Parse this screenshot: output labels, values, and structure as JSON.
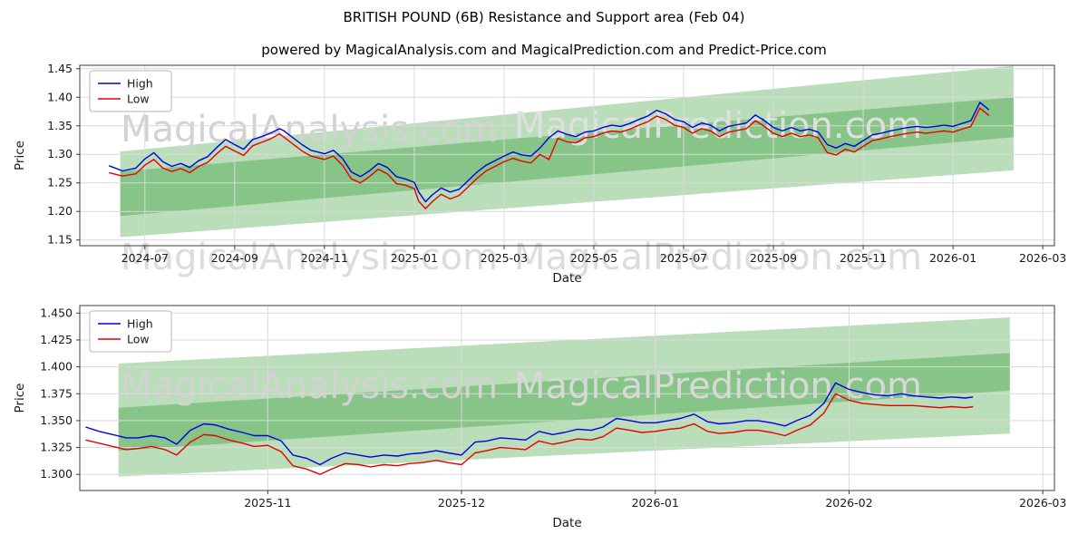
{
  "figure": {
    "title": "BRITISH POUND (6B) Resistance and Support area (Feb 04)",
    "subtitle": "powered by MagicalAnalysis.com and MagicalPrediction.com and Predict-Price.com"
  },
  "colors": {
    "high": "#0000e0",
    "low": "#e80000",
    "band": "rgba(0,128,0,0.27)",
    "grid": "#d9d9d9",
    "spine": "#3c3c3c",
    "text": "#1a1a1a",
    "watermark": "#d8d8d8",
    "legend_border": "#b5b5b5"
  },
  "chart_data": [
    {
      "type": "line",
      "title": "",
      "xlabel": "Date",
      "ylabel": "Price",
      "x_unit": "months since 2024-06-01",
      "xlim": [
        -0.45,
        21.26
      ],
      "ylim": [
        1.14,
        1.456
      ],
      "grid": true,
      "legend": {
        "position": "upper-left",
        "entries": [
          {
            "label": "High",
            "color_key": "high"
          },
          {
            "label": "Low",
            "color_key": "low"
          }
        ]
      },
      "xticks": [
        {
          "v": 1,
          "label": "2024-07"
        },
        {
          "v": 3,
          "label": "2024-09"
        },
        {
          "v": 5,
          "label": "2024-11"
        },
        {
          "v": 7,
          "label": "2025-01"
        },
        {
          "v": 9,
          "label": "2025-03"
        },
        {
          "v": 11,
          "label": "2025-05"
        },
        {
          "v": 13,
          "label": "2025-07"
        },
        {
          "v": 15,
          "label": "2025-09"
        },
        {
          "v": 17,
          "label": "2025-11"
        },
        {
          "v": 19,
          "label": "2026-01"
        },
        {
          "v": 21,
          "label": "2026-03"
        }
      ],
      "yticks": [
        {
          "v": 1.15,
          "label": "1.15"
        },
        {
          "v": 1.2,
          "label": "1.20"
        },
        {
          "v": 1.25,
          "label": "1.25"
        },
        {
          "v": 1.3,
          "label": "1.30"
        },
        {
          "v": 1.35,
          "label": "1.35"
        },
        {
          "v": 1.4,
          "label": "1.40"
        },
        {
          "v": 1.45,
          "label": "1.45"
        }
      ],
      "x": [
        0.2,
        0.5,
        0.8,
        1.0,
        1.2,
        1.4,
        1.6,
        1.8,
        2.0,
        2.2,
        2.4,
        2.6,
        2.8,
        3.0,
        3.2,
        3.4,
        3.6,
        3.8,
        4.0,
        4.1,
        4.3,
        4.5,
        4.7,
        5.0,
        5.2,
        5.4,
        5.6,
        5.8,
        6.0,
        6.2,
        6.4,
        6.6,
        6.8,
        7.0,
        7.1,
        7.25,
        7.4,
        7.6,
        7.8,
        8.0,
        8.2,
        8.4,
        8.6,
        8.8,
        9.0,
        9.2,
        9.4,
        9.6,
        9.8,
        10.0,
        10.2,
        10.4,
        10.6,
        10.8,
        11.0,
        11.2,
        11.4,
        11.6,
        11.8,
        12.0,
        12.2,
        12.4,
        12.6,
        12.8,
        13.0,
        13.2,
        13.4,
        13.6,
        13.8,
        14.0,
        14.2,
        14.4,
        14.6,
        14.8,
        15.0,
        15.2,
        15.4,
        15.6,
        15.8,
        16.0,
        16.2,
        16.4,
        16.6,
        16.8,
        17.0,
        17.2,
        17.4,
        17.6,
        17.8,
        18.0,
        18.2,
        18.4,
        18.6,
        18.8,
        19.0,
        19.2,
        19.4,
        19.6,
        19.8
      ],
      "series": [
        {
          "name": "High",
          "values": [
            1.28,
            1.271,
            1.276,
            1.292,
            1.303,
            1.287,
            1.279,
            1.284,
            1.277,
            1.289,
            1.296,
            1.312,
            1.326,
            1.317,
            1.309,
            1.326,
            1.331,
            1.337,
            1.345,
            1.341,
            1.329,
            1.317,
            1.307,
            1.301,
            1.307,
            1.293,
            1.269,
            1.261,
            1.271,
            1.284,
            1.277,
            1.261,
            1.257,
            1.251,
            1.234,
            1.217,
            1.229,
            1.241,
            1.234,
            1.239,
            1.254,
            1.269,
            1.281,
            1.289,
            1.297,
            1.304,
            1.299,
            1.297,
            1.311,
            1.329,
            1.341,
            1.335,
            1.331,
            1.339,
            1.341,
            1.347,
            1.351,
            1.349,
            1.354,
            1.361,
            1.367,
            1.377,
            1.371,
            1.361,
            1.357,
            1.347,
            1.355,
            1.351,
            1.341,
            1.349,
            1.352,
            1.355,
            1.369,
            1.359,
            1.347,
            1.341,
            1.347,
            1.341,
            1.344,
            1.339,
            1.317,
            1.311,
            1.319,
            1.314,
            1.324,
            1.334,
            1.337,
            1.341,
            1.344,
            1.347,
            1.349,
            1.347,
            1.349,
            1.351,
            1.349,
            1.354,
            1.359,
            1.391,
            1.378
          ]
        },
        {
          "name": "Low",
          "values": [
            1.268,
            1.262,
            1.266,
            1.281,
            1.291,
            1.276,
            1.27,
            1.275,
            1.268,
            1.279,
            1.286,
            1.301,
            1.314,
            1.306,
            1.298,
            1.315,
            1.321,
            1.327,
            1.336,
            1.33,
            1.318,
            1.306,
            1.297,
            1.291,
            1.297,
            1.281,
            1.257,
            1.25,
            1.261,
            1.274,
            1.266,
            1.249,
            1.246,
            1.24,
            1.218,
            1.205,
            1.217,
            1.23,
            1.222,
            1.228,
            1.243,
            1.258,
            1.271,
            1.279,
            1.287,
            1.293,
            1.288,
            1.285,
            1.3,
            1.291,
            1.328,
            1.322,
            1.32,
            1.329,
            1.331,
            1.337,
            1.341,
            1.339,
            1.344,
            1.351,
            1.357,
            1.367,
            1.361,
            1.351,
            1.347,
            1.337,
            1.345,
            1.341,
            1.331,
            1.339,
            1.342,
            1.345,
            1.359,
            1.349,
            1.337,
            1.331,
            1.337,
            1.331,
            1.334,
            1.329,
            1.303,
            1.299,
            1.309,
            1.304,
            1.314,
            1.324,
            1.327,
            1.331,
            1.334,
            1.337,
            1.339,
            1.337,
            1.339,
            1.341,
            1.339,
            1.344,
            1.349,
            1.381,
            1.368
          ]
        }
      ],
      "support_resistance_bands": [
        {
          "x": [
            0.45,
            20.35
          ],
          "bottom": [
            1.155,
            1.272
          ],
          "top": [
            1.27,
            1.4
          ]
        },
        {
          "x": [
            0.45,
            20.35
          ],
          "bottom": [
            1.192,
            1.33
          ],
          "top": [
            1.305,
            1.455
          ]
        }
      ],
      "watermarks": [
        {
          "text": "MagicalAnalysis.com",
          "xf": 0.235,
          "yf": 0.42,
          "color": "#d2d2d2"
        },
        {
          "text": "MagicalPrediction.com",
          "xf": 0.655,
          "yf": 0.4,
          "color": "#e0e0e0"
        },
        {
          "text": "MagicalAnalysis.com",
          "xf": 0.235,
          "yf": 1.13,
          "color": "#dcdcdc"
        },
        {
          "text": "MagicalPrediction.com",
          "xf": 0.655,
          "yf": 1.13,
          "color": "#dcdcdc"
        }
      ]
    },
    {
      "type": "line",
      "title": "",
      "xlabel": "Date",
      "ylabel": "Price",
      "x_unit": "months since 2025-10-01",
      "xlim": [
        0.03,
        5.06
      ],
      "ylim": [
        1.285,
        1.457
      ],
      "grid": true,
      "legend": {
        "position": "upper-left",
        "entries": [
          {
            "label": "High",
            "color_key": "high"
          },
          {
            "label": "Low",
            "color_key": "low"
          }
        ]
      },
      "xticks": [
        {
          "v": 1,
          "label": "2025-11"
        },
        {
          "v": 2,
          "label": "2025-12"
        },
        {
          "v": 3,
          "label": "2026-01"
        },
        {
          "v": 4,
          "label": "2026-02"
        },
        {
          "v": 5,
          "label": "2026-03"
        }
      ],
      "yticks": [
        {
          "v": 1.3,
          "label": "1.300"
        },
        {
          "v": 1.325,
          "label": "1.325"
        },
        {
          "v": 1.35,
          "label": "1.350"
        },
        {
          "v": 1.375,
          "label": "1.375"
        },
        {
          "v": 1.4,
          "label": "1.400"
        },
        {
          "v": 1.425,
          "label": "1.425"
        },
        {
          "v": 1.45,
          "label": "1.450"
        }
      ],
      "x": [
        0.06,
        0.13,
        0.2,
        0.27,
        0.33,
        0.4,
        0.47,
        0.53,
        0.6,
        0.67,
        0.73,
        0.8,
        0.87,
        0.93,
        1.0,
        1.07,
        1.13,
        1.2,
        1.27,
        1.33,
        1.4,
        1.47,
        1.53,
        1.6,
        1.67,
        1.73,
        1.8,
        1.87,
        1.93,
        2.0,
        2.07,
        2.13,
        2.2,
        2.27,
        2.33,
        2.4,
        2.47,
        2.53,
        2.6,
        2.67,
        2.73,
        2.8,
        2.87,
        2.93,
        3.0,
        3.07,
        3.13,
        3.2,
        3.27,
        3.33,
        3.4,
        3.47,
        3.53,
        3.6,
        3.67,
        3.73,
        3.8,
        3.87,
        3.93,
        4.0,
        4.07,
        4.13,
        4.2,
        4.27,
        4.33,
        4.4,
        4.47,
        4.53,
        4.6,
        4.64
      ],
      "series": [
        {
          "name": "High",
          "values": [
            1.344,
            1.34,
            1.337,
            1.334,
            1.334,
            1.336,
            1.334,
            1.328,
            1.341,
            1.347,
            1.346,
            1.342,
            1.339,
            1.336,
            1.336,
            1.331,
            1.318,
            1.315,
            1.309,
            1.315,
            1.32,
            1.318,
            1.316,
            1.318,
            1.317,
            1.319,
            1.32,
            1.322,
            1.32,
            1.318,
            1.33,
            1.331,
            1.334,
            1.333,
            1.332,
            1.34,
            1.337,
            1.339,
            1.342,
            1.341,
            1.344,
            1.352,
            1.35,
            1.348,
            1.348,
            1.35,
            1.352,
            1.356,
            1.349,
            1.347,
            1.348,
            1.35,
            1.35,
            1.348,
            1.345,
            1.35,
            1.355,
            1.366,
            1.385,
            1.379,
            1.376,
            1.374,
            1.373,
            1.375,
            1.373,
            1.372,
            1.371,
            1.372,
            1.371,
            1.372
          ]
        },
        {
          "name": "Low",
          "values": [
            1.332,
            1.329,
            1.326,
            1.323,
            1.324,
            1.326,
            1.323,
            1.318,
            1.33,
            1.337,
            1.336,
            1.332,
            1.329,
            1.326,
            1.327,
            1.321,
            1.308,
            1.305,
            1.3,
            1.305,
            1.31,
            1.309,
            1.307,
            1.309,
            1.308,
            1.31,
            1.311,
            1.313,
            1.311,
            1.309,
            1.32,
            1.322,
            1.325,
            1.324,
            1.323,
            1.331,
            1.328,
            1.33,
            1.333,
            1.332,
            1.335,
            1.343,
            1.341,
            1.339,
            1.34,
            1.342,
            1.343,
            1.347,
            1.34,
            1.338,
            1.339,
            1.341,
            1.341,
            1.339,
            1.336,
            1.341,
            1.346,
            1.357,
            1.375,
            1.369,
            1.366,
            1.365,
            1.364,
            1.364,
            1.364,
            1.363,
            1.362,
            1.363,
            1.362,
            1.363
          ]
        }
      ],
      "support_resistance_bands": [
        {
          "x": [
            0.23,
            4.83
          ],
          "bottom": [
            1.298,
            1.338
          ],
          "top": [
            1.362,
            1.413
          ]
        },
        {
          "x": [
            0.23,
            4.83
          ],
          "bottom": [
            1.322,
            1.378
          ],
          "top": [
            1.403,
            1.446
          ]
        }
      ],
      "watermarks": [
        {
          "text": "MagicalAnalysis.com",
          "xf": 0.235,
          "yf": 0.5,
          "color": "#d2d2d2"
        },
        {
          "text": "MagicalPrediction.com",
          "xf": 0.655,
          "yf": 0.5,
          "color": "#d8d8d8"
        }
      ]
    }
  ]
}
